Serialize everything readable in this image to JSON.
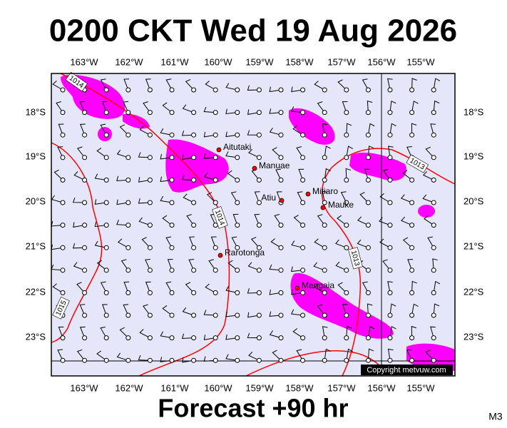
{
  "title": "0200 CKT Wed 19 Aug 2026",
  "footer": "Forecast +90 hr",
  "model": "M3",
  "copyright": "Copyright metvuw.com",
  "longitude_labels": [
    "163°W",
    "162°W",
    "161°W",
    "160°W",
    "159°W",
    "158°W",
    "157°W",
    "156°W",
    "155°W"
  ],
  "latitude_labels": [
    "18°S",
    "19°S",
    "20°S",
    "21°S",
    "22°S",
    "23°S"
  ],
  "places": [
    {
      "name": "Aitutaki"
    },
    {
      "name": "Manuae"
    },
    {
      "name": "Atiu"
    },
    {
      "name": "Mitiaro"
    },
    {
      "name": "Mauke"
    },
    {
      "name": "Rarotonga"
    },
    {
      "name": "Mangaia"
    }
  ],
  "isobar_labels": [
    "1014",
    "1014",
    "1013",
    "1013",
    "1015"
  ]
}
